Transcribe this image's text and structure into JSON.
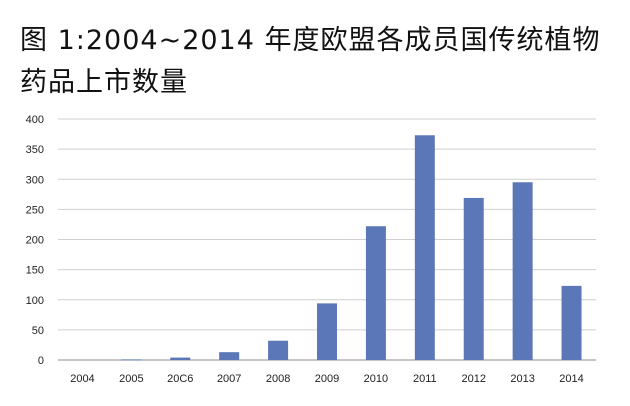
{
  "chart_data": {
    "type": "bar",
    "title": "图 1:2004~2014 年度欧盟各成员国传统植物药品上市数量",
    "xlabel": "",
    "ylabel": "",
    "categories": [
      "2004",
      "2005",
      "20C6",
      "2007",
      "2008",
      "2009",
      "2010",
      "2011",
      "2012",
      "2013",
      "2014"
    ],
    "values": [
      0,
      1,
      4,
      13,
      32,
      94,
      222,
      373,
      269,
      295,
      123
    ],
    "ylim": [
      0,
      400
    ],
    "yticks": [
      0,
      50,
      100,
      150,
      200,
      250,
      300,
      350,
      400
    ],
    "grid": true,
    "legend": "none",
    "bar_color": "#5b77b7"
  }
}
